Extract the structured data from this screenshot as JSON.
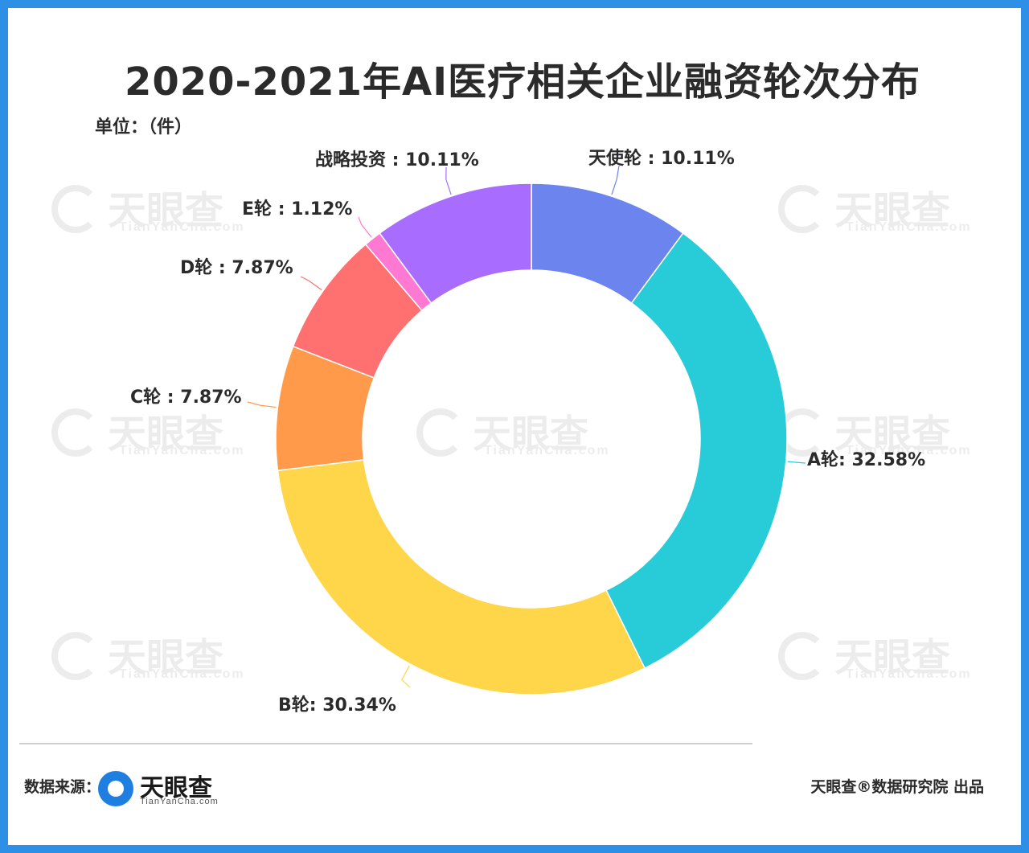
{
  "title": "2020-2021年AI医疗相关企业融资轮次分布",
  "unit_label": "单位：（件）",
  "watermark": {
    "text_cn": "天眼查",
    "text_en": "TianYanCha.com"
  },
  "footer": {
    "source_label": "数据来源：",
    "brand_cn": "天眼查",
    "brand_en": "TianYanCha.com",
    "credit": "天眼查®数据研究院 出品"
  },
  "colors": {
    "frame": "#2e8fe6",
    "text": "#2b2b2b"
  },
  "chart_data": {
    "type": "pie",
    "style": "donut",
    "title": "2020-2021年AI医疗相关企业融资轮次分布",
    "unit": "件",
    "start_angle": "12 o'clock, clockwise",
    "slices": [
      {
        "label": "天使轮",
        "value": 10.11,
        "display": "天使轮 : 10.11%",
        "color": "#6b84ee"
      },
      {
        "label": "A轮",
        "value": 32.58,
        "display": "A轮: 32.58%",
        "color": "#28cbd8"
      },
      {
        "label": "B轮",
        "value": 30.34,
        "display": "B轮: 30.34%",
        "color": "#ffd54a"
      },
      {
        "label": "C轮",
        "value": 7.87,
        "display": "C轮 : 7.87%",
        "color": "#ff9a4a"
      },
      {
        "label": "D轮",
        "value": 7.87,
        "display": "D轮 : 7.87%",
        "color": "#ff7171"
      },
      {
        "label": "E轮",
        "value": 1.12,
        "display": "E轮 : 1.12%",
        "color": "#ff79d2"
      },
      {
        "label": "战略投资",
        "value": 10.11,
        "display": "战略投资 : 10.11%",
        "color": "#a86cff"
      }
    ]
  }
}
